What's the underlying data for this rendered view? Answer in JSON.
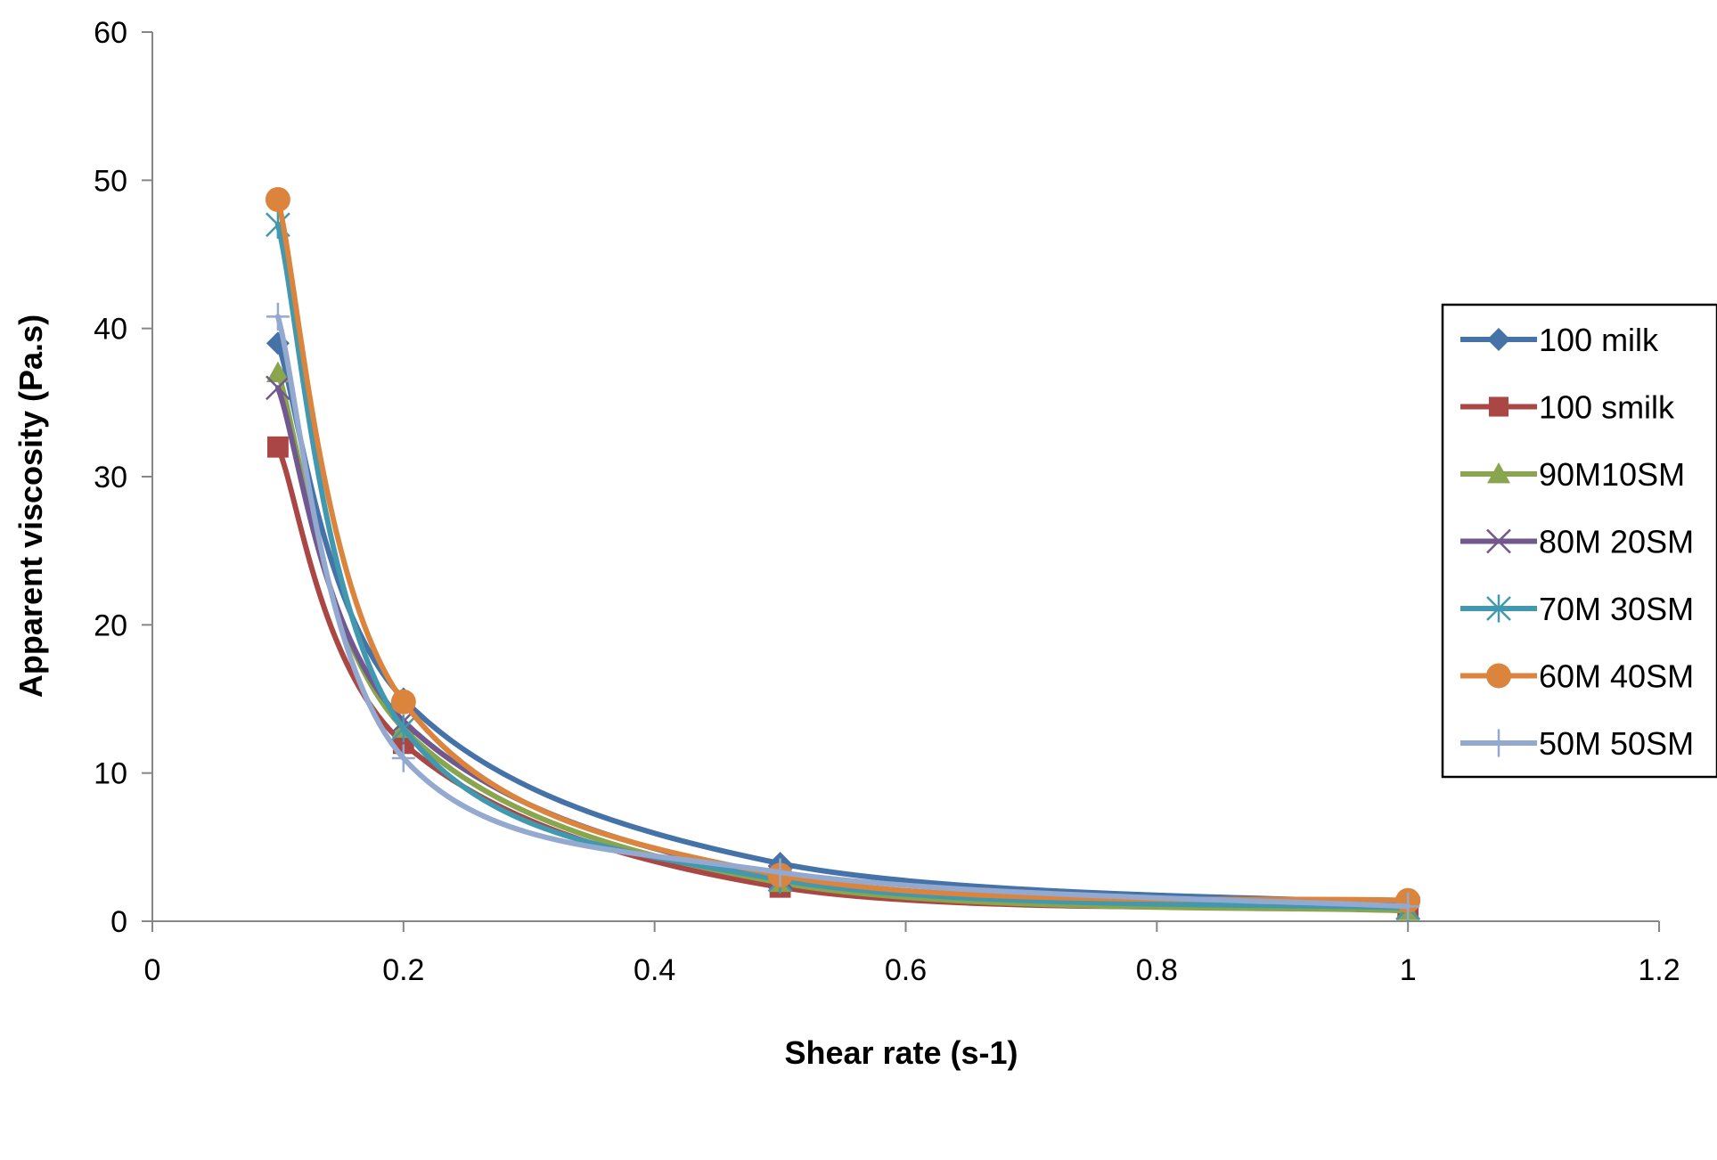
{
  "chart_data": {
    "type": "line",
    "xlabel": "Shear rate (s-1)",
    "ylabel": "Apparent viscosity (Pa.s)",
    "xlim": [
      0,
      1.2
    ],
    "ylim": [
      0,
      60
    ],
    "x_ticks": [
      "0",
      "0.2",
      "0.4",
      "0.6",
      "0.8",
      "1",
      "1.2"
    ],
    "y_ticks": [
      "0",
      "10",
      "20",
      "30",
      "40",
      "50",
      "60"
    ],
    "grid": false,
    "legend_position": "right",
    "x": [
      0.1,
      0.2,
      0.5,
      1.0
    ],
    "series": [
      {
        "name": "100 milk",
        "color": "#4572A7",
        "marker": "diamond",
        "values": [
          39.0,
          15.0,
          3.9,
          1.2
        ]
      },
      {
        "name": "100 smilk",
        "color": "#AA4643",
        "marker": "square",
        "values": [
          32.0,
          12.0,
          2.3,
          0.9
        ]
      },
      {
        "name": "90M10SM",
        "color": "#89A54E",
        "marker": "triangle",
        "values": [
          37.0,
          13.0,
          2.6,
          0.7
        ]
      },
      {
        "name": "80M 20SM",
        "color": "#71588F",
        "marker": "x",
        "values": [
          36.0,
          13.5,
          3.0,
          0.9
        ]
      },
      {
        "name": "70M 30SM",
        "color": "#4198AF",
        "marker": "star",
        "values": [
          47.0,
          13.0,
          2.8,
          0.9
        ]
      },
      {
        "name": "60M 40SM",
        "color": "#DB843D",
        "marker": "circle",
        "values": [
          48.7,
          14.8,
          3.1,
          1.4
        ]
      },
      {
        "name": "50M 50SM",
        "color": "#93A9CF",
        "marker": "plus",
        "values": [
          40.8,
          11.0,
          3.3,
          1.0
        ]
      }
    ]
  }
}
